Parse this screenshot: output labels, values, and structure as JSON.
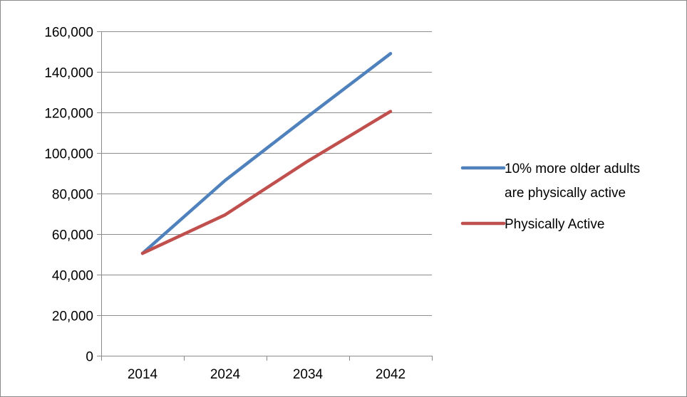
{
  "chart_data": {
    "type": "line",
    "title": "",
    "xlabel": "",
    "ylabel": "",
    "categories": [
      "2014",
      "2024",
      "2034",
      "2042"
    ],
    "ylim": [
      0,
      160000
    ],
    "yticks": [
      0,
      20000,
      40000,
      60000,
      80000,
      100000,
      120000,
      140000,
      160000
    ],
    "ytick_labels": [
      "0",
      "20,000",
      "40,000",
      "60,000",
      "80,000",
      "100,000",
      "120,000",
      "140,000",
      "160,000"
    ],
    "grid": "horizontal",
    "legend_position": "right",
    "series": [
      {
        "name": "10% more older adults are physically active",
        "legend_lines": [
          "10% more older adults",
          "are physically active"
        ],
        "color": "#4f81bd",
        "values": [
          50500,
          86500,
          118000,
          149000
        ]
      },
      {
        "name": "Physically Active",
        "legend_lines": [
          "Physically Active"
        ],
        "color": "#c0504d",
        "values": [
          50500,
          69500,
          96000,
          120500
        ]
      }
    ]
  }
}
